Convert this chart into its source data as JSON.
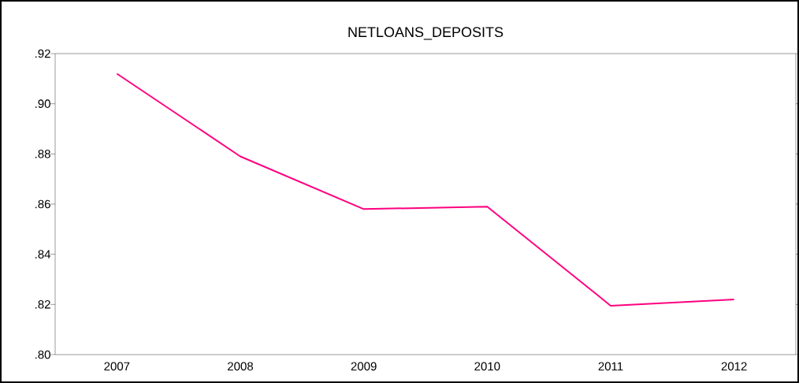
{
  "chart_data": {
    "type": "line",
    "title": "NETLOANS_DEPOSITS",
    "categories": [
      "2007",
      "2008",
      "2009",
      "2010",
      "2011",
      "2012"
    ],
    "values": [
      0.912,
      0.879,
      0.858,
      0.859,
      0.8195,
      0.822
    ],
    "color": "#ff0080",
    "ylim": [
      0.8,
      0.92
    ],
    "yticks": [
      {
        "value": 0.8,
        "label": ".80"
      },
      {
        "value": 0.82,
        "label": ".82"
      },
      {
        "value": 0.84,
        "label": ".84"
      },
      {
        "value": 0.86,
        "label": ".86"
      },
      {
        "value": 0.88,
        "label": ".88"
      },
      {
        "value": 0.9,
        "label": ".90"
      },
      {
        "value": 0.92,
        "label": ".92"
      }
    ],
    "marker": "none",
    "line_style": "solid"
  }
}
